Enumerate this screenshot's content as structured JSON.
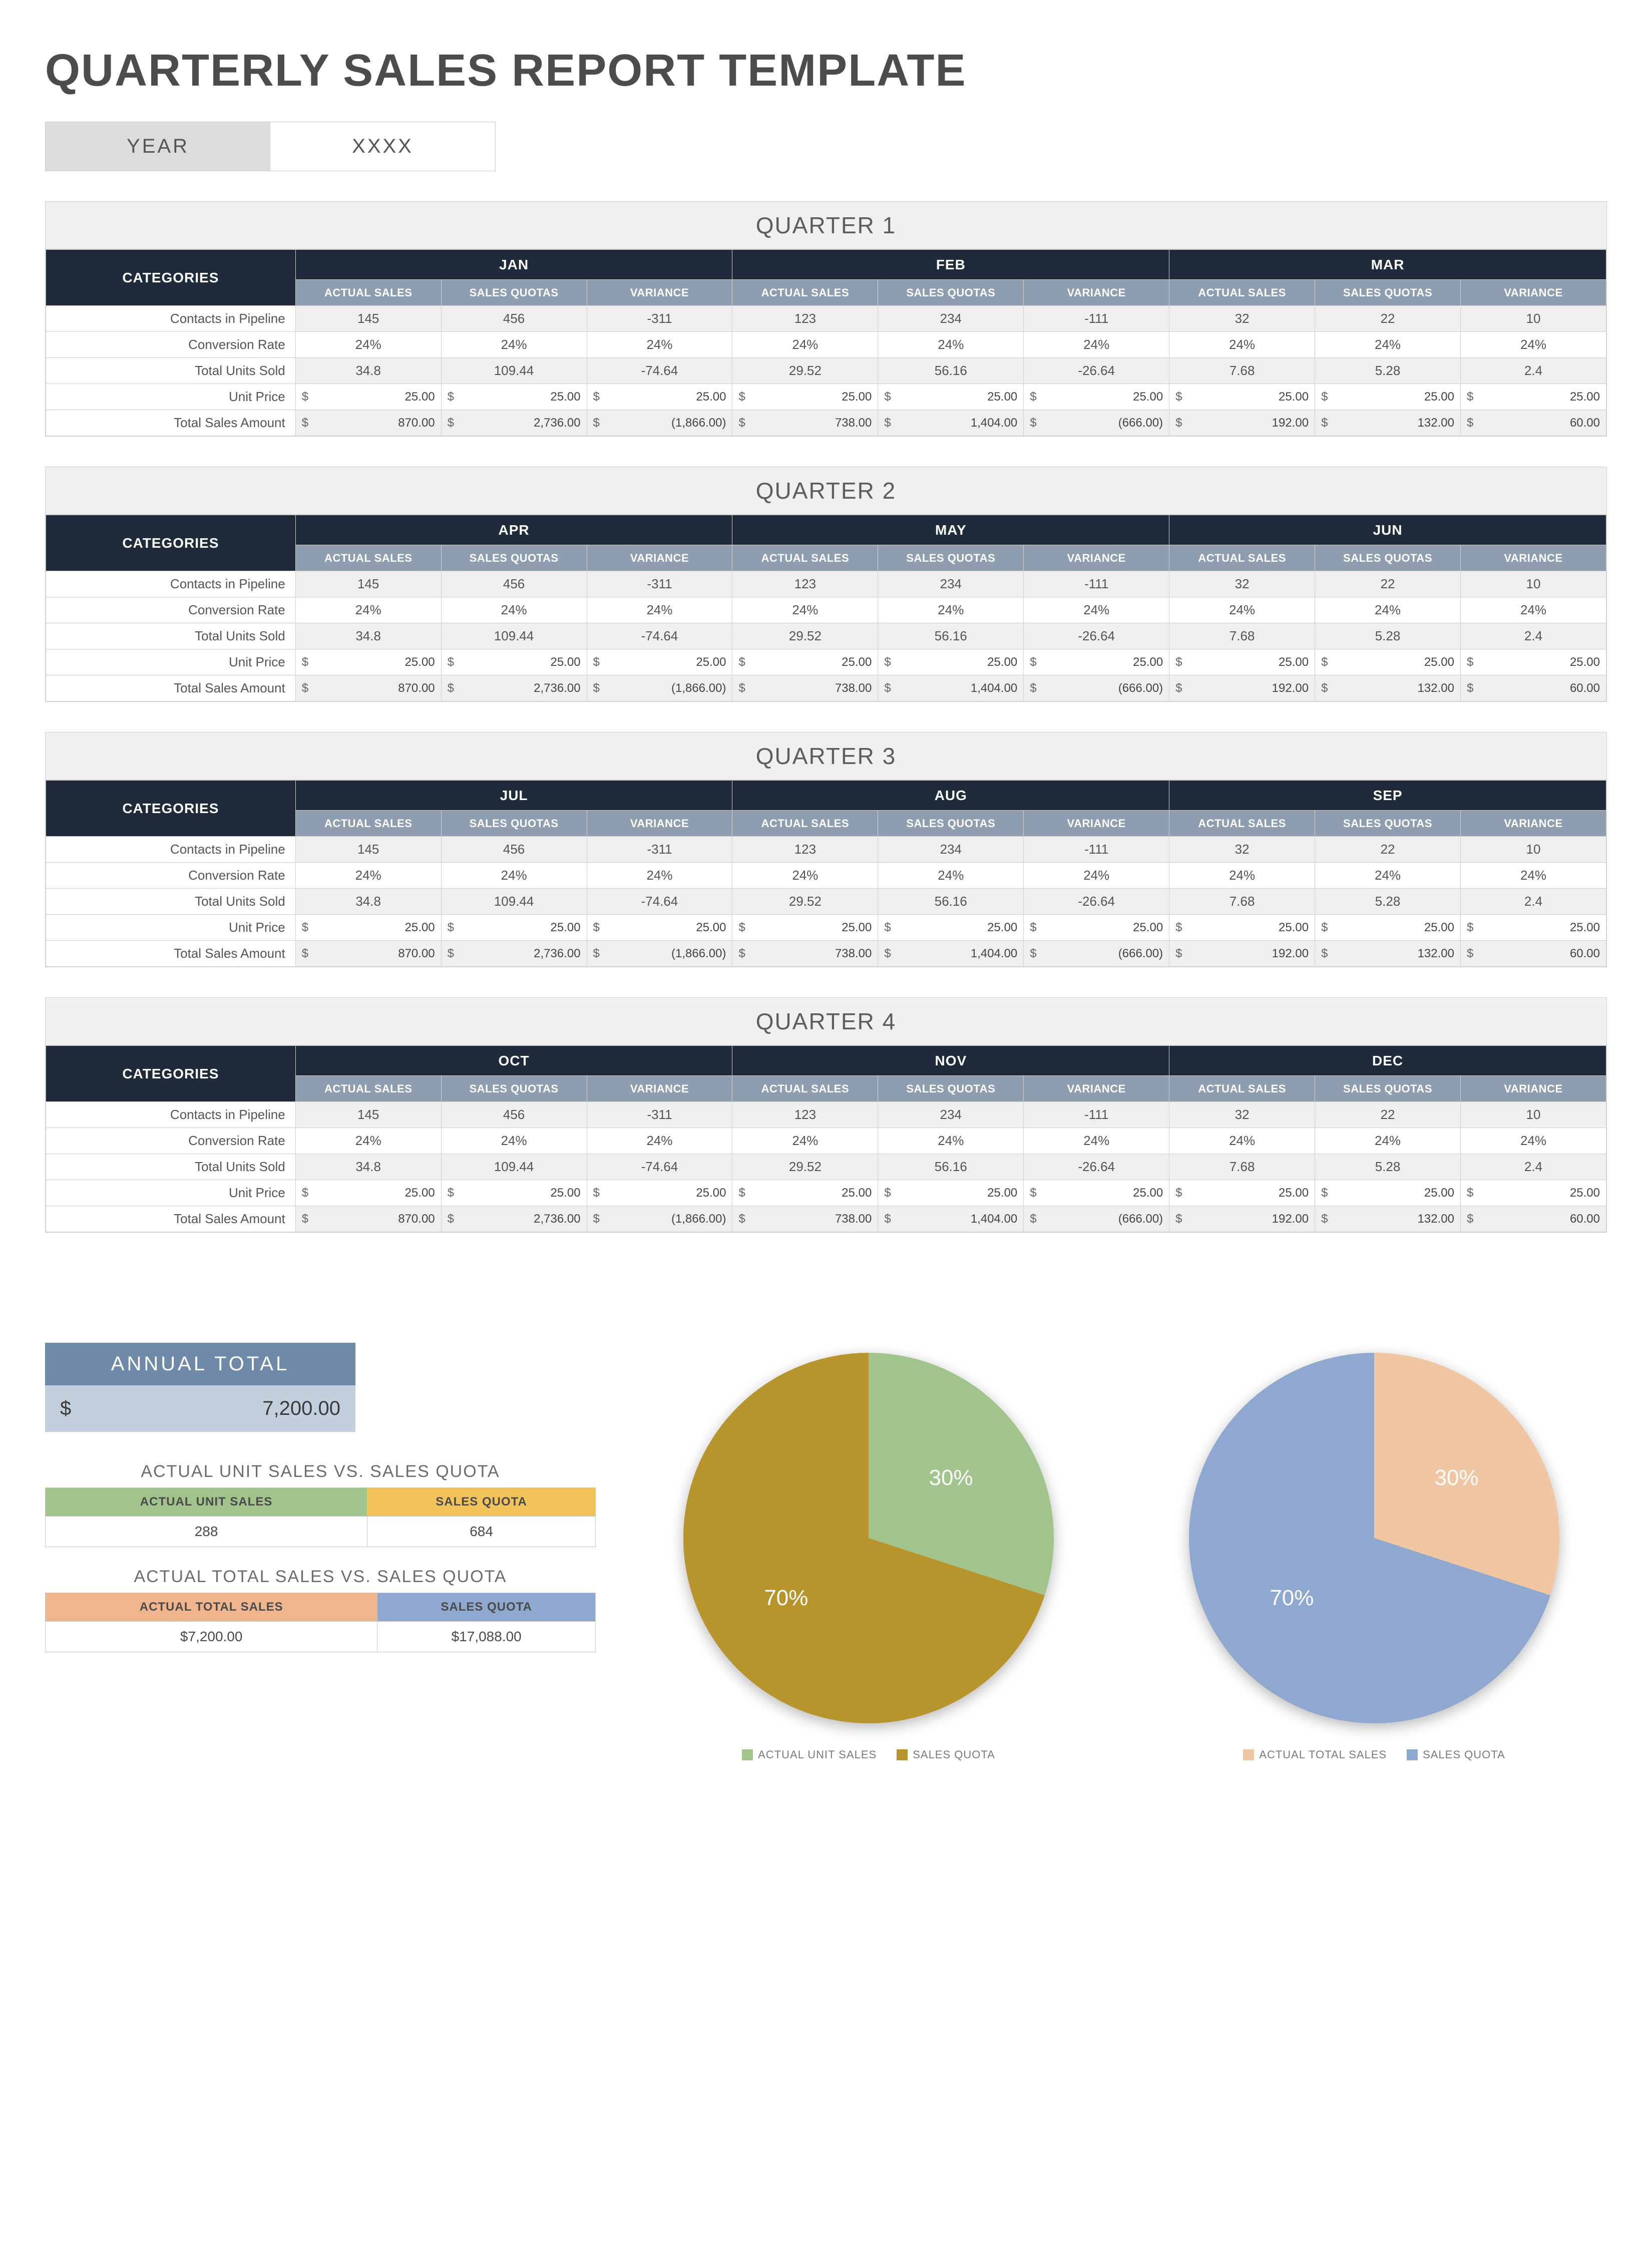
{
  "title": "QUARTERLY SALES REPORT TEMPLATE",
  "year": {
    "label": "YEAR",
    "value": "XXXX"
  },
  "row_labels": [
    "Contacts in Pipeline",
    "Conversion Rate",
    "Total Units Sold",
    "Unit Price",
    "Total Sales Amount"
  ],
  "sub_headers": [
    "ACTUAL SALES",
    "SALES QUOTAS",
    "VARIANCE"
  ],
  "categories_label": "CATEGORIES",
  "currency_symbol": "$",
  "month_data_actual": {
    "contacts": "145",
    "conv": "24%",
    "units": "34.8",
    "price": "25.00",
    "total": "870.00"
  },
  "month_data_quota": {
    "contacts": "456",
    "conv": "24%",
    "units": "109.44",
    "price": "25.00",
    "total": "2,736.00"
  },
  "month_data_variance": {
    "contacts": "-311",
    "conv": "24%",
    "units": "-74.64",
    "price": "25.00",
    "total": "(1,866.00)"
  },
  "month2_actual": {
    "contacts": "123",
    "conv": "24%",
    "units": "29.52",
    "price": "25.00",
    "total": "738.00"
  },
  "month2_quota": {
    "contacts": "234",
    "conv": "24%",
    "units": "56.16",
    "price": "25.00",
    "total": "1,404.00"
  },
  "month2_variance": {
    "contacts": "-111",
    "conv": "24%",
    "units": "-26.64",
    "price": "25.00",
    "total": "(666.00)"
  },
  "month3_actual": {
    "contacts": "32",
    "conv": "24%",
    "units": "7.68",
    "price": "25.00",
    "total": "192.00"
  },
  "month3_quota": {
    "contacts": "22",
    "conv": "24%",
    "units": "5.28",
    "price": "25.00",
    "total": "132.00"
  },
  "month3_variance": {
    "contacts": "10",
    "conv": "24%",
    "units": "2.4",
    "price": "25.00",
    "total": "60.00"
  },
  "quarters": [
    {
      "title": "QUARTER 1",
      "months": [
        "JAN",
        "FEB",
        "MAR"
      ]
    },
    {
      "title": "QUARTER 2",
      "months": [
        "APR",
        "MAY",
        "JUN"
      ]
    },
    {
      "title": "QUARTER 3",
      "months": [
        "JUL",
        "AUG",
        "SEP"
      ]
    },
    {
      "title": "QUARTER 4",
      "months": [
        "OCT",
        "NOV",
        "DEC"
      ]
    }
  ],
  "annual": {
    "header": "ANNUAL TOTAL",
    "currency": "$",
    "value": "7,200.00"
  },
  "mini1": {
    "title": "ACTUAL UNIT SALES VS. SALES QUOTA",
    "h1": "ACTUAL UNIT SALES",
    "h2": "SALES QUOTA",
    "h1_bg": "#a1c48c",
    "h2_bg": "#f2c35a",
    "v1": "288",
    "v2": "684"
  },
  "mini2": {
    "title": "ACTUAL TOTAL SALES VS. SALES QUOTA",
    "h1": "ACTUAL TOTAL SALES",
    "h2": "SALES QUOTA",
    "h1_bg": "#f1b58e",
    "h2_bg": "#8ea8cf",
    "v1": "$7,200.00",
    "v2": "$17,088.00"
  },
  "pie1": {
    "type": "pie",
    "slices": [
      {
        "label": "ACTUAL UNIT SALES",
        "pct": 30,
        "color": "#a1c48c",
        "text": "30%"
      },
      {
        "label": "SALES QUOTA",
        "pct": 70,
        "color": "#b8952c",
        "text": "70%"
      }
    ],
    "background_color": "#ffffff",
    "label_color": "#ffffff",
    "label_fontsize": 44,
    "radius": 370,
    "legend_fontsize": 22,
    "legend_color": "#7a7a7a"
  },
  "pie2": {
    "type": "pie",
    "slices": [
      {
        "label": "ACTUAL TOTAL SALES",
        "pct": 30,
        "color": "#f1c6a3",
        "text": "30%"
      },
      {
        "label": "SALES QUOTA",
        "pct": 70,
        "color": "#8ea8cf",
        "text": "70%"
      }
    ],
    "background_color": "#ffffff",
    "label_color": "#ffffff",
    "label_fontsize": 44,
    "radius": 370,
    "legend_fontsize": 22,
    "legend_color": "#7a7a7a"
  },
  "theme": {
    "header_dark": "#1f2a3a",
    "sub_header": "#8f9db0",
    "quarter_title_bg": "#f0f0f0",
    "stripe_bg": "#efefef",
    "border": "#d0d0d0",
    "annual_header_bg": "#6e8aa8",
    "annual_value_bg": "#c3cfdc",
    "title_color": "#4c4c4c",
    "title_fontsize": 90,
    "body_fontsize": 28
  }
}
